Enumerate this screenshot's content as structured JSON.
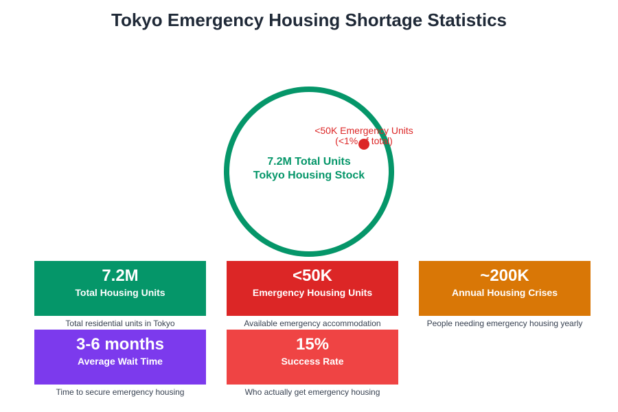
{
  "title": "Tokyo Emergency Housing Shortage Statistics",
  "diagram": {
    "circle_line1": "7.2M Total Units",
    "circle_line2": "Tokyo Housing Stock",
    "dot_line1": "<50K Emergency Units",
    "dot_line2": "(<1% of total)",
    "colors": {
      "total": "#059669",
      "emergency": "#dc2626"
    }
  },
  "cards": [
    {
      "value": "7.2M",
      "label": "Total Housing Units",
      "desc": "Total residential units in Tokyo",
      "color": "#059669"
    },
    {
      "value": "<50K",
      "label": "Emergency Housing Units",
      "desc": "Available emergency accommodation",
      "color": "#dc2626"
    },
    {
      "value": "~200K",
      "label": "Annual Housing Crises",
      "desc": "People needing emergency housing yearly",
      "color": "#d97706"
    },
    {
      "value": "3-6 months",
      "label": "Average Wait Time",
      "desc": "Time to secure emergency housing",
      "color": "#7c3aed"
    },
    {
      "value": "15%",
      "label": "Success Rate",
      "desc": "Who actually get emergency housing",
      "color": "#ef4444"
    }
  ]
}
